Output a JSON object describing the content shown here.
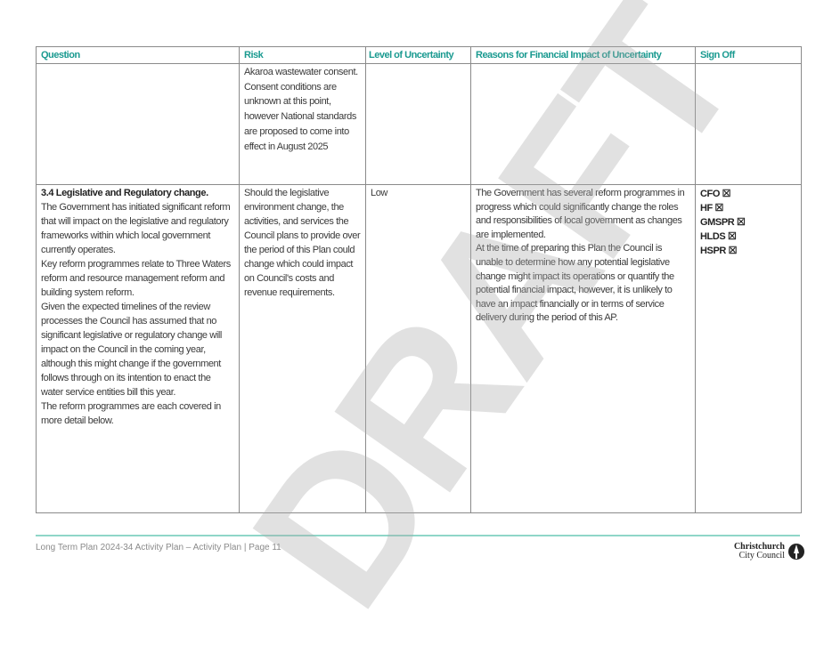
{
  "table": {
    "headers": [
      "Question",
      "Risk",
      "Level of Uncertainty",
      "Reasons for Financial Impact of Uncertainty",
      "Sign Off"
    ],
    "row1": {
      "risk": "Akaroa wastewater consent. Consent conditions are unknown at this point, however National standards are proposed to come into effect in August 2025"
    },
    "row2": {
      "question_title": "3.4 Legislative and Regulatory change.",
      "question_paragraphs": [
        "The Government has initiated significant reform that will impact on the legislative and regulatory frameworks within which local government currently operates.",
        "Key reform programmes relate to Three Waters reform and resource management reform and building system reform.",
        "Given the expected timelines of the review processes the Council has assumed that no significant legislative or regulatory change will impact on the Council in the coming year, although this might change if the government follows through on its intention to enact the water service entities bill this year.",
        "The reform programmes are each covered in more detail below."
      ],
      "risk": "Should the legislative environment change, the activities, and services the Council plans to provide over the period of this Plan could change which could impact on Council's costs and revenue requirements.",
      "uncertainty": "Low",
      "reasons": [
        "The Government has several reform programmes in progress which could significantly change the roles and responsibilities of local government as changes are implemented.",
        "At the time of preparing this Plan the Council is unable to determine how any potential legislative change might impact its operations or quantify the potential financial impact, however, it is unlikely to have an impact financially or in terms of service delivery during the period of this AP."
      ],
      "signoff": [
        "CFO ☒",
        "HF ☒",
        "GMSPR ☒",
        "HLDS ☒",
        "HSPR ☒"
      ]
    }
  },
  "watermark": "DRAFT",
  "footer": {
    "text": "Long Term Plan 2024-34 Activity Plan – Activity Plan | Page 11",
    "logo_line1": "Christchurch",
    "logo_line2": "City Council"
  },
  "colors": {
    "header_text": "#1a9a90",
    "footer_rule": "#8fd6c8"
  }
}
